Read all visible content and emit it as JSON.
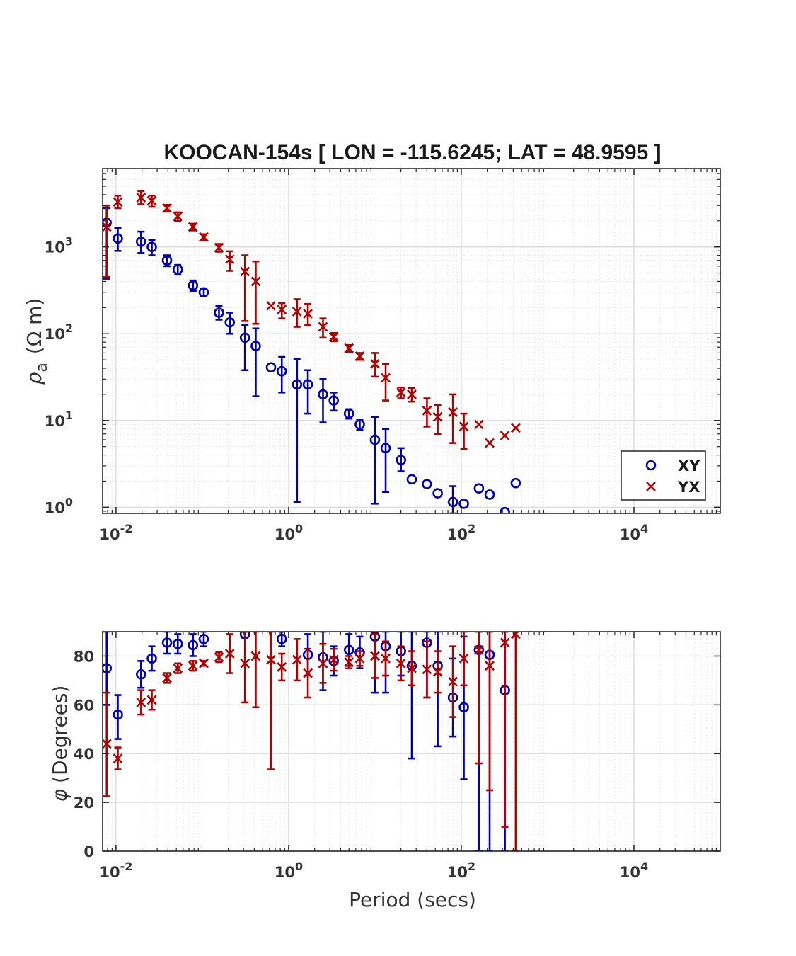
{
  "chart_data": [
    {
      "type": "scatter",
      "panel": "apparent-resistivity",
      "title": "KOOCAN-154s [ LON = -115.6245; LAT = 48.9595 ]",
      "xlabel": "",
      "ylabel_symbol": "ρ",
      "ylabel_sub": "a",
      "ylabel_unit": "(Ω m)",
      "xscale": "log",
      "yscale": "log",
      "xlim": [
        0.007,
        100000
      ],
      "ylim": [
        0.85,
        8000
      ],
      "grid": true,
      "minor_grid": true,
      "x_ticks": [
        {
          "base": "10",
          "exp": "-2",
          "v": 0.01
        },
        {
          "base": "10",
          "exp": "0",
          "v": 1
        },
        {
          "base": "10",
          "exp": "2",
          "v": 100
        },
        {
          "base": "10",
          "exp": "4",
          "v": 10000
        }
      ],
      "y_ticks": [
        {
          "base": "10",
          "exp": "0",
          "v": 1
        },
        {
          "base": "10",
          "exp": "1",
          "v": 10
        },
        {
          "base": "10",
          "exp": "2",
          "v": 100
        },
        {
          "base": "10",
          "exp": "3",
          "v": 1000
        }
      ],
      "legend": {
        "position": "bottom-right",
        "entries": [
          "XY",
          "YX"
        ]
      },
      "series": [
        {
          "name": "XY",
          "marker": "circle",
          "color": "#0000b0",
          "points": [
            {
              "x": 0.0078,
              "y": 1900,
              "lo": 430,
              "hi": 2800
            },
            {
              "x": 0.0105,
              "y": 1250,
              "lo": 900,
              "hi": 1650
            },
            {
              "x": 0.0195,
              "y": 1150,
              "lo": 850,
              "hi": 1500
            },
            {
              "x": 0.026,
              "y": 1000,
              "lo": 800,
              "hi": 1200
            },
            {
              "x": 0.039,
              "y": 700,
              "lo": 600,
              "hi": 800
            },
            {
              "x": 0.052,
              "y": 550,
              "lo": 480,
              "hi": 620
            },
            {
              "x": 0.078,
              "y": 360,
              "lo": 310,
              "hi": 410
            },
            {
              "x": 0.104,
              "y": 300,
              "lo": 270,
              "hi": 330
            },
            {
              "x": 0.156,
              "y": 175,
              "lo": 145,
              "hi": 210
            },
            {
              "x": 0.208,
              "y": 135,
              "lo": 100,
              "hi": 175
            },
            {
              "x": 0.312,
              "y": 90,
              "lo": 38,
              "hi": 125
            },
            {
              "x": 0.416,
              "y": 72,
              "lo": 19,
              "hi": 115
            },
            {
              "x": 0.625,
              "y": 41,
              "lo": 41,
              "hi": 41
            },
            {
              "x": 0.833,
              "y": 37,
              "lo": 21,
              "hi": 54
            },
            {
              "x": 1.25,
              "y": 26,
              "lo": 1.15,
              "hi": 51
            },
            {
              "x": 1.67,
              "y": 26,
              "lo": 12,
              "hi": 38
            },
            {
              "x": 2.5,
              "y": 20,
              "lo": 9.5,
              "hi": 30
            },
            {
              "x": 3.33,
              "y": 17,
              "lo": 13,
              "hi": 21
            },
            {
              "x": 5.0,
              "y": 12,
              "lo": 10.5,
              "hi": 13.5
            },
            {
              "x": 6.67,
              "y": 9,
              "lo": 7.8,
              "hi": 10.2
            },
            {
              "x": 10.0,
              "y": 6,
              "lo": 1.1,
              "hi": 11
            },
            {
              "x": 13.3,
              "y": 4.8,
              "lo": 1.5,
              "hi": 8
            },
            {
              "x": 20.0,
              "y": 3.5,
              "lo": 2.6,
              "hi": 4.8
            },
            {
              "x": 26.7,
              "y": 2.1,
              "lo": 2.1,
              "hi": 2.1
            },
            {
              "x": 40.0,
              "y": 1.85,
              "lo": 1.85,
              "hi": 1.85
            },
            {
              "x": 53.3,
              "y": 1.45,
              "lo": 1.45,
              "hi": 1.45
            },
            {
              "x": 80.0,
              "y": 1.15,
              "lo": 0.85,
              "hi": 1.75
            },
            {
              "x": 107,
              "y": 1.1,
              "lo": 1.1,
              "hi": 1.1
            },
            {
              "x": 160,
              "y": 1.65,
              "lo": 1.65,
              "hi": 1.65
            },
            {
              "x": 213,
              "y": 1.4,
              "lo": 1.4,
              "hi": 1.4
            },
            {
              "x": 320,
              "y": 0.88,
              "lo": 0.88,
              "hi": 0.88
            },
            {
              "x": 427,
              "y": 1.9,
              "lo": 1.9,
              "hi": 1.9
            }
          ]
        },
        {
          "name": "YX",
          "marker": "x",
          "color": "#b00000",
          "points": [
            {
              "x": 0.0078,
              "y": 1700,
              "lo": 450,
              "hi": 3000
            },
            {
              "x": 0.0105,
              "y": 3300,
              "lo": 2800,
              "hi": 3900
            },
            {
              "x": 0.0195,
              "y": 3700,
              "lo": 3100,
              "hi": 4400
            },
            {
              "x": 0.026,
              "y": 3400,
              "lo": 2900,
              "hi": 3900
            },
            {
              "x": 0.039,
              "y": 2800,
              "lo": 2550,
              "hi": 3050
            },
            {
              "x": 0.052,
              "y": 2250,
              "lo": 2000,
              "hi": 2500
            },
            {
              "x": 0.078,
              "y": 1700,
              "lo": 1550,
              "hi": 1850
            },
            {
              "x": 0.104,
              "y": 1300,
              "lo": 1200,
              "hi": 1400
            },
            {
              "x": 0.156,
              "y": 980,
              "lo": 880,
              "hi": 1080
            },
            {
              "x": 0.208,
              "y": 720,
              "lo": 530,
              "hi": 890
            },
            {
              "x": 0.312,
              "y": 520,
              "lo": 140,
              "hi": 800
            },
            {
              "x": 0.416,
              "y": 400,
              "lo": 130,
              "hi": 680
            },
            {
              "x": 0.625,
              "y": 210,
              "lo": 210,
              "hi": 210
            },
            {
              "x": 0.833,
              "y": 190,
              "lo": 150,
              "hi": 225
            },
            {
              "x": 1.25,
              "y": 180,
              "lo": 120,
              "hi": 250
            },
            {
              "x": 1.67,
              "y": 170,
              "lo": 125,
              "hi": 220
            },
            {
              "x": 2.5,
              "y": 120,
              "lo": 90,
              "hi": 150
            },
            {
              "x": 3.33,
              "y": 92,
              "lo": 82,
              "hi": 102
            },
            {
              "x": 5.0,
              "y": 68,
              "lo": 62,
              "hi": 74
            },
            {
              "x": 6.67,
              "y": 55,
              "lo": 50,
              "hi": 60
            },
            {
              "x": 10.0,
              "y": 45,
              "lo": 32,
              "hi": 60
            },
            {
              "x": 13.3,
              "y": 31,
              "lo": 17,
              "hi": 45
            },
            {
              "x": 20.0,
              "y": 21,
              "lo": 18,
              "hi": 24
            },
            {
              "x": 26.7,
              "y": 20,
              "lo": 16.5,
              "hi": 23.5
            },
            {
              "x": 40.0,
              "y": 13,
              "lo": 8.5,
              "hi": 18
            },
            {
              "x": 53.3,
              "y": 11,
              "lo": 7,
              "hi": 15
            },
            {
              "x": 80.0,
              "y": 12.5,
              "lo": 5.5,
              "hi": 20
            },
            {
              "x": 107,
              "y": 8.5,
              "lo": 4.7,
              "hi": 12
            },
            {
              "x": 160,
              "y": 9,
              "lo": 9,
              "hi": 9
            },
            {
              "x": 213,
              "y": 5.5,
              "lo": 5.5,
              "hi": 5.5
            },
            {
              "x": 320,
              "y": 6.7,
              "lo": 6.7,
              "hi": 6.7
            },
            {
              "x": 427,
              "y": 8.2,
              "lo": 8.2,
              "hi": 8.2
            }
          ]
        }
      ]
    },
    {
      "type": "scatter",
      "panel": "phase",
      "title": "",
      "xlabel": "Period (secs)",
      "ylabel_symbol": "φ",
      "ylabel_unit": "(Degrees)",
      "xscale": "log",
      "yscale": "linear",
      "xlim": [
        0.007,
        100000
      ],
      "ylim": [
        0,
        90
      ],
      "grid": true,
      "x_ticks": [
        {
          "base": "10",
          "exp": "-2",
          "v": 0.01
        },
        {
          "base": "10",
          "exp": "0",
          "v": 1
        },
        {
          "base": "10",
          "exp": "2",
          "v": 100
        },
        {
          "base": "10",
          "exp": "4",
          "v": 10000
        }
      ],
      "y_ticks": [
        {
          "label": "0",
          "v": 0
        },
        {
          "label": "20",
          "v": 20
        },
        {
          "label": "40",
          "v": 40
        },
        {
          "label": "60",
          "v": 60
        },
        {
          "label": "80",
          "v": 80
        }
      ],
      "series": [
        {
          "name": "XY",
          "marker": "circle",
          "color": "#0000b0",
          "points": [
            {
              "x": 0.0078,
              "y": 75,
              "lo": 60,
              "hi": 90
            },
            {
              "x": 0.0105,
              "y": 56,
              "lo": 46,
              "hi": 64
            },
            {
              "x": 0.0195,
              "y": 72.5,
              "lo": 67,
              "hi": 78
            },
            {
              "x": 0.026,
              "y": 79,
              "lo": 74,
              "hi": 84
            },
            {
              "x": 0.039,
              "y": 85.5,
              "lo": 81,
              "hi": 90
            },
            {
              "x": 0.052,
              "y": 85,
              "lo": 81,
              "hi": 89
            },
            {
              "x": 0.078,
              "y": 84.5,
              "lo": 80,
              "hi": 89
            },
            {
              "x": 0.104,
              "y": 87,
              "lo": 84,
              "hi": 90
            },
            {
              "x": 0.312,
              "y": 89,
              "lo": 87.5,
              "hi": 90
            },
            {
              "x": 0.833,
              "y": 87,
              "lo": 84,
              "hi": 90
            },
            {
              "x": 1.67,
              "y": 80.5,
              "lo": 72,
              "hi": 89
            },
            {
              "x": 2.5,
              "y": 79.5,
              "lo": 66,
              "hi": 90
            },
            {
              "x": 3.33,
              "y": 78,
              "lo": 72,
              "hi": 84
            },
            {
              "x": 5.0,
              "y": 82.5,
              "lo": 76,
              "hi": 89
            },
            {
              "x": 6.67,
              "y": 81.5,
              "lo": 75,
              "hi": 88
            },
            {
              "x": 10.0,
              "y": 88,
              "lo": 65,
              "hi": 90
            },
            {
              "x": 13.3,
              "y": 84,
              "lo": 65,
              "hi": 90
            },
            {
              "x": 20.0,
              "y": 82,
              "lo": 72,
              "hi": 90
            },
            {
              "x": 26.7,
              "y": 76,
              "lo": 38,
              "hi": 90
            },
            {
              "x": 40.0,
              "y": 85.5,
              "lo": 63,
              "hi": 90
            },
            {
              "x": 53.3,
              "y": 76,
              "lo": 43,
              "hi": 90
            },
            {
              "x": 80.0,
              "y": 63,
              "lo": 47,
              "hi": 79
            },
            {
              "x": 107,
              "y": 59,
              "lo": 29.5,
              "hi": 88
            },
            {
              "x": 160,
              "y": 82.5,
              "lo": 0,
              "hi": 90
            },
            {
              "x": 213,
              "y": 80.5,
              "lo": 0,
              "hi": 90
            },
            {
              "x": 320,
              "y": 66,
              "lo": 0,
              "hi": 90
            }
          ]
        },
        {
          "name": "YX",
          "marker": "x",
          "color": "#b00000",
          "points": [
            {
              "x": 0.0078,
              "y": 44,
              "lo": 22.5,
              "hi": 65
            },
            {
              "x": 0.0105,
              "y": 38,
              "lo": 33.5,
              "hi": 42.5
            },
            {
              "x": 0.0195,
              "y": 61,
              "lo": 56,
              "hi": 66
            },
            {
              "x": 0.026,
              "y": 62,
              "lo": 58,
              "hi": 66
            },
            {
              "x": 0.039,
              "y": 71,
              "lo": 69,
              "hi": 73
            },
            {
              "x": 0.052,
              "y": 75,
              "lo": 73,
              "hi": 77
            },
            {
              "x": 0.078,
              "y": 76,
              "lo": 74,
              "hi": 78
            },
            {
              "x": 0.104,
              "y": 77,
              "lo": 76,
              "hi": 78
            },
            {
              "x": 0.156,
              "y": 79.5,
              "lo": 77.5,
              "hi": 81.5
            },
            {
              "x": 0.208,
              "y": 81,
              "lo": 73,
              "hi": 89
            },
            {
              "x": 0.312,
              "y": 77,
              "lo": 61,
              "hi": 90
            },
            {
              "x": 0.416,
              "y": 80,
              "lo": 59,
              "hi": 90
            },
            {
              "x": 0.625,
              "y": 78.5,
              "lo": 33.5,
              "hi": 90
            },
            {
              "x": 0.833,
              "y": 75.5,
              "lo": 70,
              "hi": 81
            },
            {
              "x": 1.25,
              "y": 78.5,
              "lo": 70,
              "hi": 87
            },
            {
              "x": 1.67,
              "y": 73,
              "lo": 63,
              "hi": 83
            },
            {
              "x": 2.5,
              "y": 77,
              "lo": 69,
              "hi": 85
            },
            {
              "x": 3.33,
              "y": 78.5,
              "lo": 74,
              "hi": 83
            },
            {
              "x": 5.0,
              "y": 77.5,
              "lo": 75,
              "hi": 80
            },
            {
              "x": 6.67,
              "y": 79,
              "lo": 76,
              "hi": 82
            },
            {
              "x": 10.0,
              "y": 80,
              "lo": 71,
              "hi": 89
            },
            {
              "x": 13.3,
              "y": 79,
              "lo": 72,
              "hi": 86
            },
            {
              "x": 20.0,
              "y": 77,
              "lo": 70,
              "hi": 84
            },
            {
              "x": 26.7,
              "y": 75,
              "lo": 68,
              "hi": 82
            },
            {
              "x": 40.0,
              "y": 74.5,
              "lo": 63,
              "hi": 86
            },
            {
              "x": 53.3,
              "y": 73.5,
              "lo": 65,
              "hi": 82
            },
            {
              "x": 80.0,
              "y": 69.5,
              "lo": 55,
              "hi": 84
            },
            {
              "x": 107,
              "y": 79,
              "lo": 68,
              "hi": 90
            },
            {
              "x": 160,
              "y": 82.5,
              "lo": 36,
              "hi": 90
            },
            {
              "x": 213,
              "y": 76,
              "lo": 25,
              "hi": 90
            },
            {
              "x": 320,
              "y": 85.5,
              "lo": 10,
              "hi": 90
            },
            {
              "x": 427,
              "y": 89,
              "lo": 0,
              "hi": 90
            }
          ]
        }
      ]
    }
  ]
}
